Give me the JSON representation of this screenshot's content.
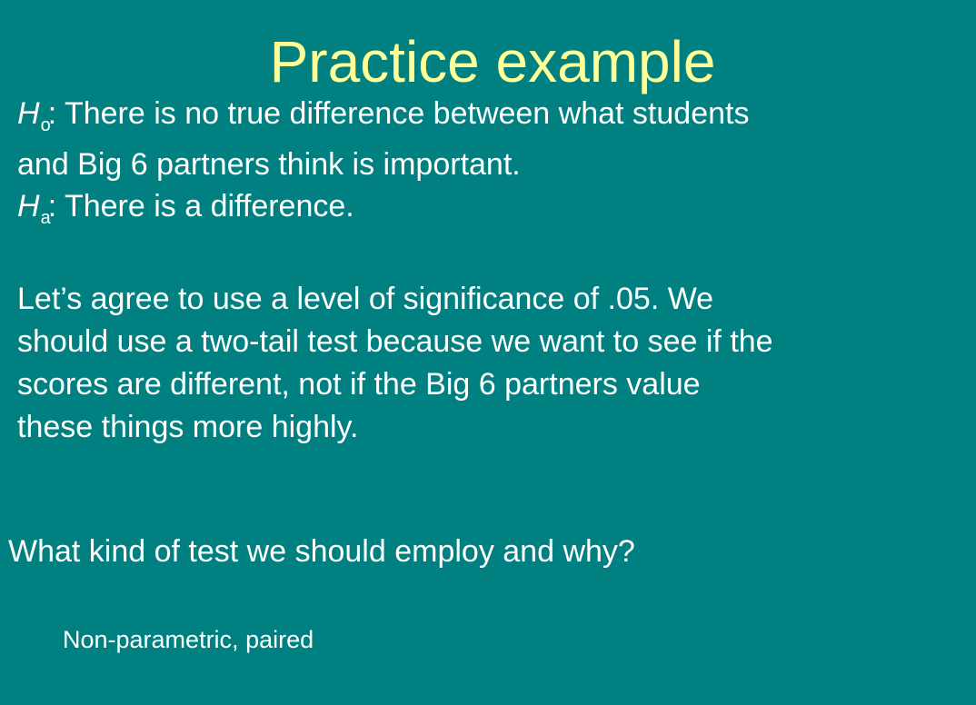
{
  "slide": {
    "title": "Practice example",
    "null_hypothesis": {
      "symbol": "H",
      "subscript": "o",
      "line1": ": There is no true difference between what students",
      "line2": "and Big 6 partners think is important."
    },
    "alt_hypothesis": {
      "symbol": "H",
      "subscript": "a",
      "text": ": There is a difference."
    },
    "paragraph_lines": [
      "Let’s agree to use a level of significance of .05. We",
      "should use a two-tail test because we want to see if the",
      "scores are different, not if the Big 6 partners value",
      "these things more highly."
    ],
    "question": "What kind of test we should employ and why?",
    "answer": "Non-parametric, paired",
    "colors": {
      "background": "#008080",
      "title": "#FFFF99",
      "text": "#FFFFFF"
    }
  }
}
